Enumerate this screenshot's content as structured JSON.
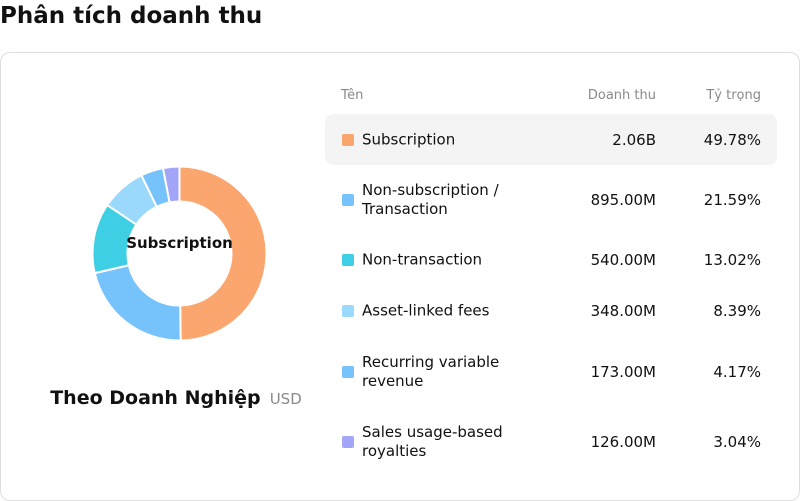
{
  "page": {
    "title": "Phân tích doanh thu"
  },
  "chart": {
    "center_label": "Subscription",
    "caption": "Theo Doanh Nghiệp",
    "unit": "USD"
  },
  "table": {
    "headers": {
      "name": "Tên",
      "revenue": "Doanh thu",
      "share": "Tỷ trọng"
    },
    "rows": [
      {
        "name": "Subscription",
        "revenue": "2.06B",
        "share": "49.78%",
        "color": "#fba56f"
      },
      {
        "name": "Non-subscription / Transaction",
        "revenue": "895.00M",
        "share": "21.59%",
        "color": "#76c2fb"
      },
      {
        "name": "Non-transaction",
        "revenue": "540.00M",
        "share": "13.02%",
        "color": "#3ecfe4"
      },
      {
        "name": "Asset-linked fees",
        "revenue": "348.00M",
        "share": "8.39%",
        "color": "#9ad9fb"
      },
      {
        "name": "Recurring variable revenue",
        "revenue": "173.00M",
        "share": "4.17%",
        "color": "#76c2fb"
      },
      {
        "name": "Sales usage-based royalties",
        "revenue": "126.00M",
        "share": "3.04%",
        "color": "#a3a6f8"
      }
    ]
  },
  "chart_data": {
    "type": "pie",
    "categories": [
      "Subscription",
      "Non-subscription / Transaction",
      "Non-transaction",
      "Asset-linked fees",
      "Recurring variable revenue",
      "Sales usage-based royalties"
    ],
    "values": [
      49.78,
      21.59,
      13.02,
      8.39,
      4.17,
      3.04
    ],
    "colors": [
      "#fba56f",
      "#76c2fb",
      "#3ecfe4",
      "#9ad9fb",
      "#76c2fb",
      "#a3a6f8"
    ]
  }
}
